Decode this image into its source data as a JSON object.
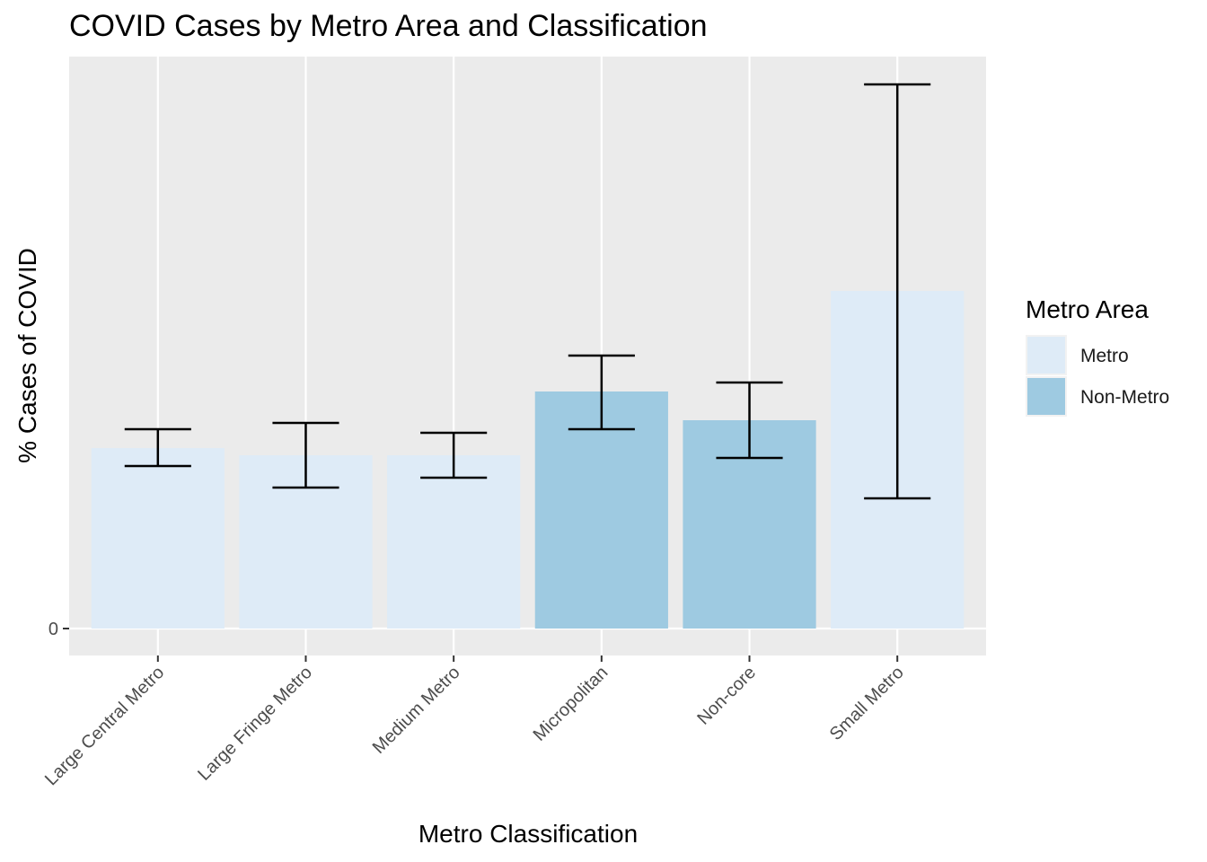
{
  "chart_data": {
    "type": "bar",
    "title": "COVID Cases by Metro Area and Classification",
    "xlabel": "Metro Classification",
    "ylabel": "% Cases of COVID",
    "categories": [
      "Large Central Metro",
      "Large Fringe Metro",
      "Medium Metro",
      "Micropolitan",
      "Non-core",
      "Small Metro"
    ],
    "values": [
      0.201,
      0.193,
      0.193,
      0.264,
      0.232,
      0.376
    ],
    "error_low": [
      0.181,
      0.157,
      0.168,
      0.222,
      0.19,
      0.145
    ],
    "error_high": [
      0.222,
      0.229,
      0.218,
      0.304,
      0.274,
      0.606
    ],
    "groups": [
      "Metro",
      "Metro",
      "Metro",
      "Non-Metro",
      "Non-Metro",
      "Metro"
    ],
    "y_ticks": [
      {
        "value": 0,
        "label": "0"
      }
    ],
    "ylim": [
      -0.03,
      0.637
    ],
    "grid": true,
    "legend": {
      "title": "Metro Area",
      "position": "right",
      "entries": [
        {
          "label": "Metro",
          "color": "#deebf7"
        },
        {
          "label": "Non-Metro",
          "color": "#9ecae1"
        }
      ]
    },
    "colors": {
      "panel_background": "#ebebeb",
      "grid": "#ffffff",
      "error_bar": "#000000"
    }
  }
}
